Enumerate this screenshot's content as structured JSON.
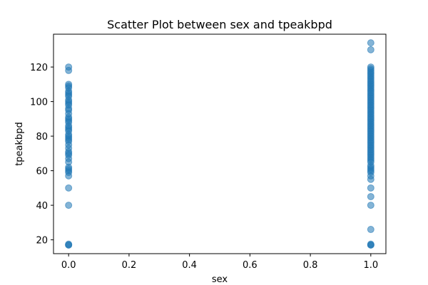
{
  "chart_data": {
    "type": "scatter",
    "title": "Scatter Plot between sex and tpeakbpd",
    "xlabel": "sex",
    "ylabel": "tpeakbpd",
    "xlim": [
      -0.05,
      1.05
    ],
    "ylim": [
      12,
      139
    ],
    "xticks": [
      "0.0",
      "0.2",
      "0.4",
      "0.6",
      "0.8",
      "1.0"
    ],
    "yticks": [
      "20",
      "40",
      "60",
      "80",
      "100",
      "120"
    ],
    "grid": false,
    "marker_color": "#1f77b4",
    "marker_alpha": 0.55,
    "series": [
      {
        "points": [
          [
            0,
            17
          ],
          [
            0,
            17
          ],
          [
            0,
            17.5
          ],
          [
            0,
            40
          ],
          [
            0,
            50
          ],
          [
            0,
            57
          ],
          [
            0,
            59
          ],
          [
            0,
            60
          ],
          [
            0,
            61
          ],
          [
            0,
            62
          ],
          [
            0,
            65
          ],
          [
            0,
            67
          ],
          [
            0,
            69
          ],
          [
            0,
            70
          ],
          [
            0,
            71
          ],
          [
            0,
            73
          ],
          [
            0,
            75
          ],
          [
            0,
            77
          ],
          [
            0,
            78
          ],
          [
            0,
            79
          ],
          [
            0,
            80
          ],
          [
            0,
            81
          ],
          [
            0,
            83
          ],
          [
            0,
            84
          ],
          [
            0,
            85
          ],
          [
            0,
            86
          ],
          [
            0,
            88
          ],
          [
            0,
            89
          ],
          [
            0,
            90
          ],
          [
            0,
            91
          ],
          [
            0,
            93
          ],
          [
            0,
            95
          ],
          [
            0,
            96
          ],
          [
            0,
            98
          ],
          [
            0,
            99
          ],
          [
            0,
            100
          ],
          [
            0,
            101
          ],
          [
            0,
            103
          ],
          [
            0,
            104
          ],
          [
            0,
            105
          ],
          [
            0,
            106
          ],
          [
            0,
            108
          ],
          [
            0,
            109
          ],
          [
            0,
            110
          ],
          [
            0,
            118
          ],
          [
            0,
            120
          ],
          [
            1,
            17
          ],
          [
            1,
            17
          ],
          [
            1,
            17.5
          ],
          [
            1,
            26
          ],
          [
            1,
            40
          ],
          [
            1,
            45
          ],
          [
            1,
            50
          ],
          [
            1,
            55
          ],
          [
            1,
            57
          ],
          [
            1,
            59
          ],
          [
            1,
            60
          ],
          [
            1,
            61
          ],
          [
            1,
            62
          ],
          [
            1,
            63
          ],
          [
            1,
            65
          ],
          [
            1,
            66
          ],
          [
            1,
            67
          ],
          [
            1,
            68
          ],
          [
            1,
            69
          ],
          [
            1,
            70
          ],
          [
            1,
            71
          ],
          [
            1,
            72
          ],
          [
            1,
            73
          ],
          [
            1,
            74
          ],
          [
            1,
            75
          ],
          [
            1,
            76
          ],
          [
            1,
            77
          ],
          [
            1,
            78
          ],
          [
            1,
            79
          ],
          [
            1,
            80
          ],
          [
            1,
            81
          ],
          [
            1,
            82
          ],
          [
            1,
            83
          ],
          [
            1,
            84
          ],
          [
            1,
            85
          ],
          [
            1,
            86
          ],
          [
            1,
            87
          ],
          [
            1,
            88
          ],
          [
            1,
            89
          ],
          [
            1,
            90
          ],
          [
            1,
            91
          ],
          [
            1,
            92
          ],
          [
            1,
            93
          ],
          [
            1,
            94
          ],
          [
            1,
            95
          ],
          [
            1,
            96
          ],
          [
            1,
            97
          ],
          [
            1,
            98
          ],
          [
            1,
            99
          ],
          [
            1,
            100
          ],
          [
            1,
            101
          ],
          [
            1,
            102
          ],
          [
            1,
            103
          ],
          [
            1,
            104
          ],
          [
            1,
            105
          ],
          [
            1,
            106
          ],
          [
            1,
            107
          ],
          [
            1,
            108
          ],
          [
            1,
            109
          ],
          [
            1,
            110
          ],
          [
            1,
            111
          ],
          [
            1,
            112
          ],
          [
            1,
            113
          ],
          [
            1,
            114
          ],
          [
            1,
            115
          ],
          [
            1,
            116
          ],
          [
            1,
            117
          ],
          [
            1,
            118
          ],
          [
            1,
            119
          ],
          [
            1,
            120
          ],
          [
            1,
            130
          ],
          [
            1,
            134
          ]
        ]
      }
    ]
  }
}
